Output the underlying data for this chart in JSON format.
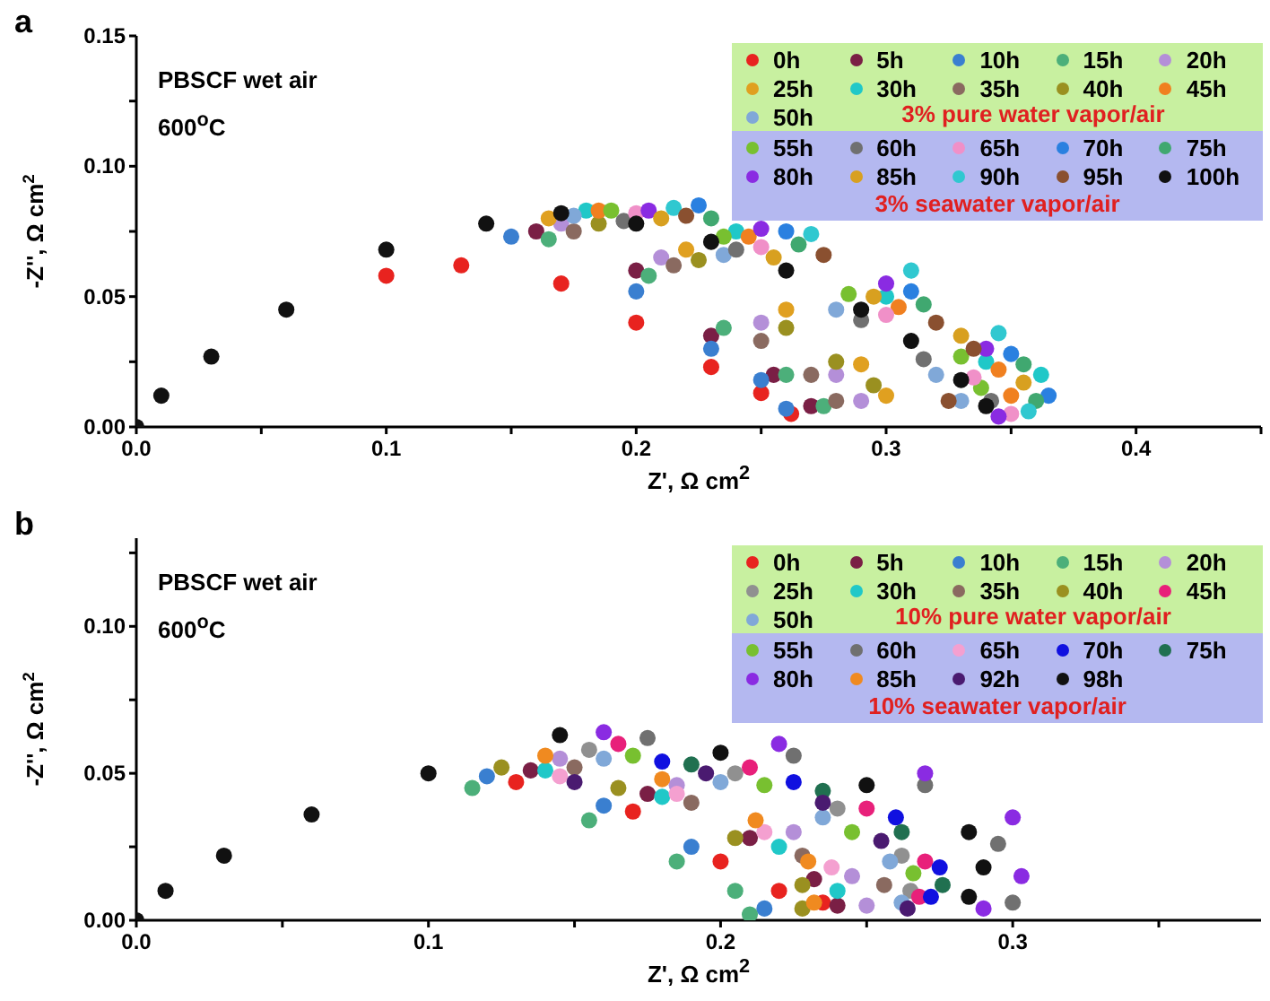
{
  "chart_data": [
    {
      "type": "scatter",
      "title": "a",
      "xlabel": "Z', Ω cm$^{2}$",
      "ylabel": "-Z'', Ω cm$^{2}$",
      "annotations": [
        "PBSCF wet air",
        "600$^{o}$C",
        "3% pure water vapor/air",
        "3% seawater vapor/air"
      ],
      "xlim": [
        0,
        0.45
      ],
      "ylim": [
        0,
        0.15
      ],
      "xticks": [
        {
          "value": 0,
          "label": "0.0"
        },
        {
          "value": 0.05,
          "label": null
        },
        {
          "value": 0.1,
          "label": "0.1"
        },
        {
          "value": 0.15,
          "label": null
        },
        {
          "value": 0.2,
          "label": "0.2"
        },
        {
          "value": 0.25,
          "label": null
        },
        {
          "value": 0.3,
          "label": "0.3"
        },
        {
          "value": 0.35,
          "label": null
        },
        {
          "value": 0.4,
          "label": "0.4"
        },
        {
          "value": 0.45,
          "label": null
        }
      ],
      "yticks": [
        {
          "value": 0,
          "label": "0.00"
        },
        {
          "value": 0.025,
          "label": null
        },
        {
          "value": 0.05,
          "label": "0.05"
        },
        {
          "value": 0.075,
          "label": null
        },
        {
          "value": 0.1,
          "label": "0.10"
        },
        {
          "value": 0.125,
          "label": null
        },
        {
          "value": 0.15,
          "label": "0.15"
        }
      ],
      "grid": false,
      "legend": "top right",
      "marker": "circle",
      "series": [
        {
          "name": "0h",
          "color": "#e8231f",
          "x": [
            0.1,
            0.13,
            0.17,
            0.2,
            0.23,
            0.25,
            0.262
          ],
          "values": [
            0.058,
            0.062,
            0.055,
            0.04,
            0.023,
            0.013,
            0.005
          ]
        },
        {
          "name": "5h",
          "color": "#7a1f45",
          "x": [
            0.16,
            0.2,
            0.23,
            0.255,
            0.27
          ],
          "values": [
            0.075,
            0.06,
            0.035,
            0.02,
            0.008
          ]
        },
        {
          "name": "10h",
          "color": "#3a7fd0",
          "x": [
            0.15,
            0.2,
            0.23,
            0.25,
            0.26
          ],
          "values": [
            0.073,
            0.052,
            0.03,
            0.018,
            0.007
          ]
        },
        {
          "name": "15h",
          "color": "#4caf7a",
          "x": [
            0.165,
            0.205,
            0.235,
            0.26,
            0.275
          ],
          "values": [
            0.072,
            0.058,
            0.038,
            0.02,
            0.008
          ]
        },
        {
          "name": "20h",
          "color": "#b48fd8",
          "x": [
            0.17,
            0.21,
            0.25,
            0.28,
            0.29
          ],
          "values": [
            0.078,
            0.065,
            0.04,
            0.02,
            0.01
          ]
        },
        {
          "name": "25h",
          "color": "#e0a020",
          "x": [
            0.165,
            0.22,
            0.26,
            0.29,
            0.3
          ],
          "values": [
            0.08,
            0.068,
            0.045,
            0.024,
            0.012
          ]
        },
        {
          "name": "30h",
          "color": "#20c8c8",
          "x": [
            0.18,
            0.24,
            0.3,
            0.34,
            0.362
          ],
          "values": [
            0.083,
            0.075,
            0.05,
            0.025,
            0.02
          ]
        },
        {
          "name": "35h",
          "color": "#8a6a60",
          "x": [
            0.175,
            0.215,
            0.25,
            0.27,
            0.28
          ],
          "values": [
            0.075,
            0.062,
            0.033,
            0.02,
            0.01
          ]
        },
        {
          "name": "40h",
          "color": "#9a9020",
          "x": [
            0.185,
            0.225,
            0.26,
            0.28,
            0.295
          ],
          "values": [
            0.078,
            0.064,
            0.038,
            0.025,
            0.016
          ]
        },
        {
          "name": "45h",
          "color": "#f08020",
          "x": [
            0.185,
            0.245,
            0.305,
            0.345,
            0.35
          ],
          "values": [
            0.083,
            0.073,
            0.046,
            0.022,
            0.012
          ]
        },
        {
          "name": "50h",
          "color": "#80a8d8",
          "x": [
            0.175,
            0.235,
            0.28,
            0.32,
            0.33
          ],
          "values": [
            0.081,
            0.066,
            0.045,
            0.02,
            0.01
          ]
        },
        {
          "name": "55h",
          "color": "#78c030",
          "x": [
            0.19,
            0.235,
            0.285,
            0.33,
            0.338
          ],
          "values": [
            0.083,
            0.073,
            0.051,
            0.027,
            0.015
          ]
        },
        {
          "name": "60h",
          "color": "#707070",
          "x": [
            0.195,
            0.24,
            0.29,
            0.315,
            0.342
          ],
          "values": [
            0.079,
            0.068,
            0.041,
            0.026,
            0.01
          ]
        },
        {
          "name": "65h",
          "color": "#f090c8",
          "x": [
            0.2,
            0.25,
            0.3,
            0.335,
            0.35
          ],
          "values": [
            0.082,
            0.069,
            0.043,
            0.019,
            0.005
          ]
        },
        {
          "name": "70h",
          "color": "#2a80e0",
          "x": [
            0.225,
            0.26,
            0.31,
            0.35,
            0.365
          ],
          "values": [
            0.085,
            0.075,
            0.052,
            0.028,
            0.012
          ]
        },
        {
          "name": "75h",
          "color": "#40a870",
          "x": [
            0.23,
            0.265,
            0.315,
            0.355,
            0.36
          ],
          "values": [
            0.08,
            0.07,
            0.047,
            0.024,
            0.01
          ]
        },
        {
          "name": "80h",
          "color": "#8a2be2",
          "x": [
            0.205,
            0.25,
            0.3,
            0.34,
            0.345
          ],
          "values": [
            0.083,
            0.076,
            0.055,
            0.03,
            0.004
          ]
        },
        {
          "name": "85h",
          "color": "#d8a020",
          "x": [
            0.21,
            0.255,
            0.295,
            0.33,
            0.355
          ],
          "values": [
            0.08,
            0.065,
            0.05,
            0.035,
            0.017
          ]
        },
        {
          "name": "90h",
          "color": "#30c8d0",
          "x": [
            0.215,
            0.27,
            0.31,
            0.345,
            0.357
          ],
          "values": [
            0.084,
            0.074,
            0.06,
            0.036,
            0.006
          ]
        },
        {
          "name": "95h",
          "color": "#8a5030",
          "x": [
            0.22,
            0.275,
            0.32,
            0.335,
            0.325
          ],
          "values": [
            0.081,
            0.066,
            0.04,
            0.03,
            0.01
          ]
        },
        {
          "name": "100h",
          "color": "#111111",
          "x": [
            0,
            0.01,
            0.03,
            0.06,
            0.1,
            0.14,
            0.17,
            0.2,
            0.23,
            0.26,
            0.29,
            0.31,
            0.33,
            0.34
          ],
          "values": [
            0,
            0.012,
            0.027,
            0.045,
            0.068,
            0.078,
            0.082,
            0.078,
            0.071,
            0.06,
            0.045,
            0.033,
            0.018,
            0.008
          ]
        }
      ]
    },
    {
      "type": "scatter",
      "title": "b",
      "xlabel": "Z', Ω cm$^{2}$",
      "ylabel": "-Z'', Ω cm$^{2}$",
      "annotations": [
        "PBSCF wet air",
        "600$^{o}$C",
        "10% pure water vapor/air",
        "10% seawater vapor/air"
      ],
      "xlim": [
        0,
        0.385
      ],
      "ylim": [
        0,
        0.13
      ],
      "xticks": [
        {
          "value": 0,
          "label": "0.0"
        },
        {
          "value": 0.05,
          "label": null
        },
        {
          "value": 0.1,
          "label": "0.1"
        },
        {
          "value": 0.15,
          "label": null
        },
        {
          "value": 0.2,
          "label": "0.2"
        },
        {
          "value": 0.25,
          "label": null
        },
        {
          "value": 0.3,
          "label": "0.3"
        },
        {
          "value": 0.35,
          "label": null
        }
      ],
      "yticks": [
        {
          "value": 0,
          "label": "0.00"
        },
        {
          "value": 0.025,
          "label": null
        },
        {
          "value": 0.05,
          "label": "0.05"
        },
        {
          "value": 0.075,
          "label": null
        },
        {
          "value": 0.1,
          "label": "0.10"
        },
        {
          "value": 0.125,
          "label": null
        }
      ],
      "grid": false,
      "legend": "top right",
      "marker": "circle",
      "series": [
        {
          "name": "0h",
          "color": "#e8231f",
          "x": [
            0.13,
            0.17,
            0.2,
            0.22,
            0.235
          ],
          "values": [
            0.047,
            0.037,
            0.02,
            0.01,
            0.006
          ]
        },
        {
          "name": "5h",
          "color": "#7a1f45",
          "x": [
            0.135,
            0.175,
            0.21,
            0.232,
            0.24
          ],
          "values": [
            0.051,
            0.043,
            0.028,
            0.014,
            0.005
          ]
        },
        {
          "name": "10h",
          "color": "#3a7fd0",
          "x": [
            0.12,
            0.16,
            0.19,
            0.215
          ],
          "values": [
            0.049,
            0.039,
            0.025,
            0.004
          ]
        },
        {
          "name": "15h",
          "color": "#4caf7a",
          "x": [
            0.115,
            0.155,
            0.185,
            0.205,
            0.21
          ],
          "values": [
            0.045,
            0.034,
            0.02,
            0.01,
            0.002
          ]
        },
        {
          "name": "20h",
          "color": "#b48fd8",
          "x": [
            0.145,
            0.185,
            0.225,
            0.245,
            0.25
          ],
          "values": [
            0.055,
            0.046,
            0.03,
            0.015,
            0.005
          ]
        },
        {
          "name": "25h",
          "color": "#909090",
          "x": [
            0.155,
            0.205,
            0.24,
            0.262,
            0.265
          ],
          "values": [
            0.058,
            0.05,
            0.038,
            0.022,
            0.01
          ]
        },
        {
          "name": "30h",
          "color": "#20c8c8",
          "x": [
            0.14,
            0.18,
            0.22,
            0.24
          ],
          "values": [
            0.051,
            0.042,
            0.025,
            0.01
          ]
        },
        {
          "name": "35h",
          "color": "#8a6a60",
          "x": [
            0.15,
            0.19,
            0.228,
            0.256
          ],
          "values": [
            0.052,
            0.04,
            0.022,
            0.012
          ]
        },
        {
          "name": "40h",
          "color": "#9a9020",
          "x": [
            0.125,
            0.165,
            0.205,
            0.228,
            0.228
          ],
          "values": [
            0.052,
            0.045,
            0.028,
            0.012,
            0.004
          ]
        },
        {
          "name": "45h",
          "color": "#e8207a",
          "x": [
            0.165,
            0.21,
            0.25,
            0.27,
            0.268
          ],
          "values": [
            0.06,
            0.052,
            0.038,
            0.02,
            0.008
          ]
        },
        {
          "name": "50h",
          "color": "#80a8d8",
          "x": [
            0.16,
            0.2,
            0.235,
            0.258,
            0.262
          ],
          "values": [
            0.055,
            0.047,
            0.035,
            0.02,
            0.006
          ]
        },
        {
          "name": "55h",
          "color": "#78c030",
          "x": [
            0.17,
            0.215,
            0.245,
            0.266
          ],
          "values": [
            0.056,
            0.046,
            0.03,
            0.016
          ]
        },
        {
          "name": "60h",
          "color": "#707070",
          "x": [
            0.175,
            0.225,
            0.27,
            0.295,
            0.3
          ],
          "values": [
            0.062,
            0.056,
            0.046,
            0.026,
            0.006
          ]
        },
        {
          "name": "65h",
          "color": "#f4a0d0",
          "x": [
            0.145,
            0.185,
            0.215,
            0.238
          ],
          "values": [
            0.049,
            0.043,
            0.03,
            0.018
          ]
        },
        {
          "name": "70h",
          "color": "#1010e0",
          "x": [
            0.18,
            0.225,
            0.26,
            0.275,
            0.272
          ],
          "values": [
            0.054,
            0.047,
            0.035,
            0.018,
            0.008
          ]
        },
        {
          "name": "75h",
          "color": "#207050",
          "x": [
            0.19,
            0.235,
            0.262,
            0.276
          ],
          "values": [
            0.053,
            0.044,
            0.03,
            0.012
          ]
        },
        {
          "name": "80h",
          "color": "#8a2be2",
          "x": [
            0.16,
            0.22,
            0.27,
            0.3,
            0.303,
            0.29
          ],
          "values": [
            0.064,
            0.06,
            0.05,
            0.035,
            0.015,
            0.004
          ]
        },
        {
          "name": "85h",
          "color": "#f08a20",
          "x": [
            0.14,
            0.18,
            0.212,
            0.23,
            0.232
          ],
          "values": [
            0.056,
            0.048,
            0.034,
            0.02,
            0.006
          ]
        },
        {
          "name": "92h",
          "color": "#4a1a70",
          "x": [
            0.15,
            0.195,
            0.235,
            0.255,
            0.264
          ],
          "values": [
            0.047,
            0.05,
            0.04,
            0.027,
            0.004
          ]
        },
        {
          "name": "98h",
          "color": "#111111",
          "x": [
            0,
            0.01,
            0.03,
            0.06,
            0.1,
            0.145,
            0.2,
            0.25,
            0.285,
            0.29,
            0.285
          ],
          "values": [
            0,
            0.01,
            0.022,
            0.036,
            0.05,
            0.063,
            0.057,
            0.046,
            0.03,
            0.018,
            0.008
          ]
        }
      ]
    }
  ]
}
